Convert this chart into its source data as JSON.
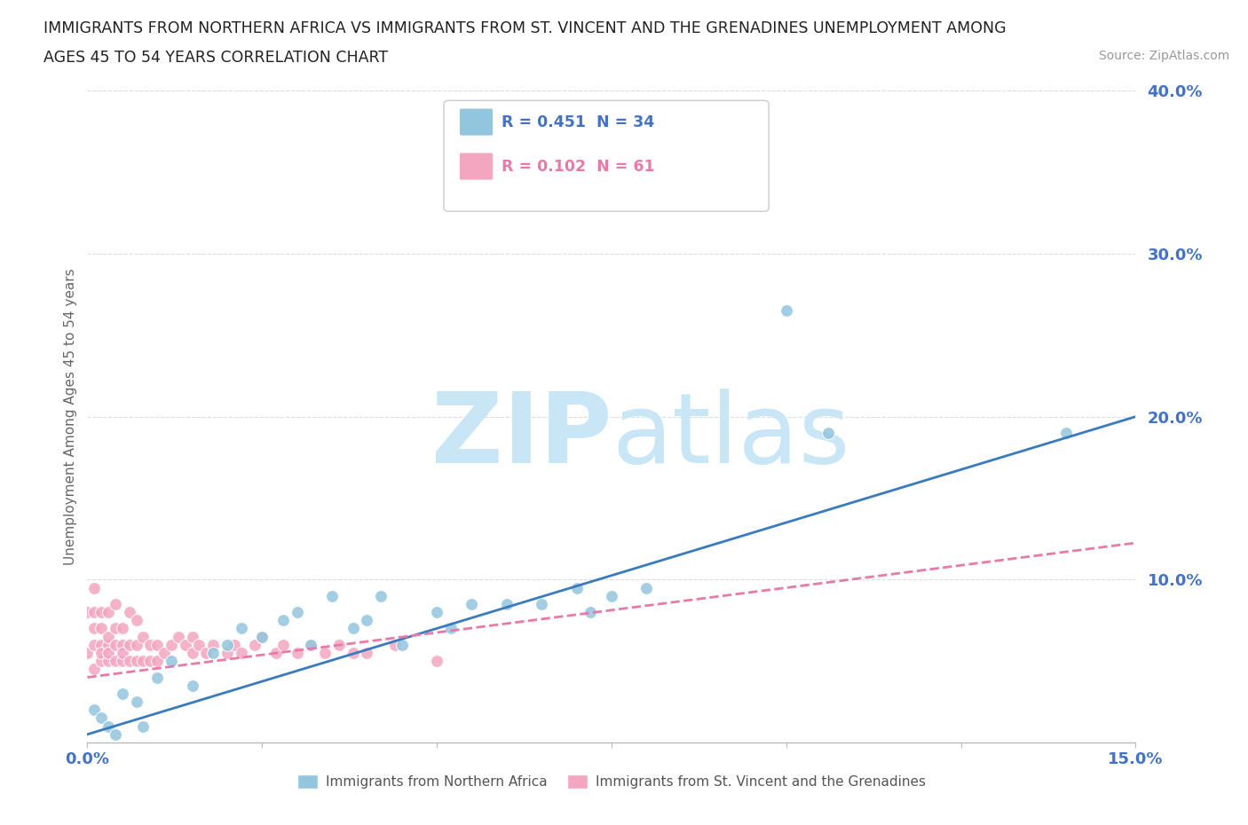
{
  "title_line1": "IMMIGRANTS FROM NORTHERN AFRICA VS IMMIGRANTS FROM ST. VINCENT AND THE GRENADINES UNEMPLOYMENT AMONG",
  "title_line2": "AGES 45 TO 54 YEARS CORRELATION CHART",
  "source_text": "Source: ZipAtlas.com",
  "ylabel": "Unemployment Among Ages 45 to 54 years",
  "xlim": [
    0.0,
    0.15
  ],
  "ylim": [
    0.0,
    0.4
  ],
  "blue_R": 0.451,
  "blue_N": 34,
  "pink_R": 0.102,
  "pink_N": 61,
  "blue_color": "#92c5de",
  "pink_color": "#f4a6c0",
  "blue_line_color": "#3a7abf",
  "pink_line_color": "#e87aaa",
  "blue_line_intercept": 0.005,
  "blue_line_slope": 1.3,
  "pink_line_intercept": 0.04,
  "pink_line_slope": 0.55,
  "watermark_color": "#c8e6f5",
  "legend_label_blue": "Immigrants from Northern Africa",
  "legend_label_pink": "Immigrants from St. Vincent and the Grenadines",
  "blue_scatter_x": [
    0.001,
    0.002,
    0.003,
    0.004,
    0.005,
    0.007,
    0.008,
    0.01,
    0.012,
    0.015,
    0.018,
    0.02,
    0.022,
    0.025,
    0.028,
    0.03,
    0.032,
    0.035,
    0.038,
    0.04,
    0.042,
    0.045,
    0.05,
    0.052,
    0.055,
    0.06,
    0.065,
    0.07,
    0.072,
    0.075,
    0.08,
    0.1,
    0.106,
    0.14
  ],
  "blue_scatter_y": [
    0.02,
    0.015,
    0.01,
    0.005,
    0.03,
    0.025,
    0.01,
    0.04,
    0.05,
    0.035,
    0.055,
    0.06,
    0.07,
    0.065,
    0.075,
    0.08,
    0.06,
    0.09,
    0.07,
    0.075,
    0.09,
    0.06,
    0.08,
    0.07,
    0.085,
    0.085,
    0.085,
    0.095,
    0.08,
    0.09,
    0.095,
    0.265,
    0.19,
    0.19
  ],
  "pink_scatter_x": [
    0.0,
    0.0,
    0.001,
    0.001,
    0.001,
    0.001,
    0.001,
    0.002,
    0.002,
    0.002,
    0.002,
    0.002,
    0.003,
    0.003,
    0.003,
    0.003,
    0.003,
    0.004,
    0.004,
    0.004,
    0.004,
    0.005,
    0.005,
    0.005,
    0.005,
    0.006,
    0.006,
    0.006,
    0.007,
    0.007,
    0.007,
    0.008,
    0.008,
    0.009,
    0.009,
    0.01,
    0.01,
    0.011,
    0.012,
    0.013,
    0.014,
    0.015,
    0.015,
    0.016,
    0.017,
    0.018,
    0.02,
    0.021,
    0.022,
    0.024,
    0.025,
    0.027,
    0.028,
    0.03,
    0.032,
    0.034,
    0.036,
    0.038,
    0.04,
    0.044,
    0.05
  ],
  "pink_scatter_y": [
    0.055,
    0.08,
    0.045,
    0.06,
    0.07,
    0.08,
    0.095,
    0.05,
    0.06,
    0.07,
    0.055,
    0.08,
    0.05,
    0.06,
    0.065,
    0.055,
    0.08,
    0.05,
    0.06,
    0.07,
    0.085,
    0.05,
    0.06,
    0.07,
    0.055,
    0.05,
    0.06,
    0.08,
    0.05,
    0.06,
    0.075,
    0.05,
    0.065,
    0.05,
    0.06,
    0.05,
    0.06,
    0.055,
    0.06,
    0.065,
    0.06,
    0.055,
    0.065,
    0.06,
    0.055,
    0.06,
    0.055,
    0.06,
    0.055,
    0.06,
    0.065,
    0.055,
    0.06,
    0.055,
    0.06,
    0.055,
    0.06,
    0.055,
    0.055,
    0.06,
    0.05
  ],
  "background_color": "#ffffff",
  "grid_color": "#dddddd"
}
